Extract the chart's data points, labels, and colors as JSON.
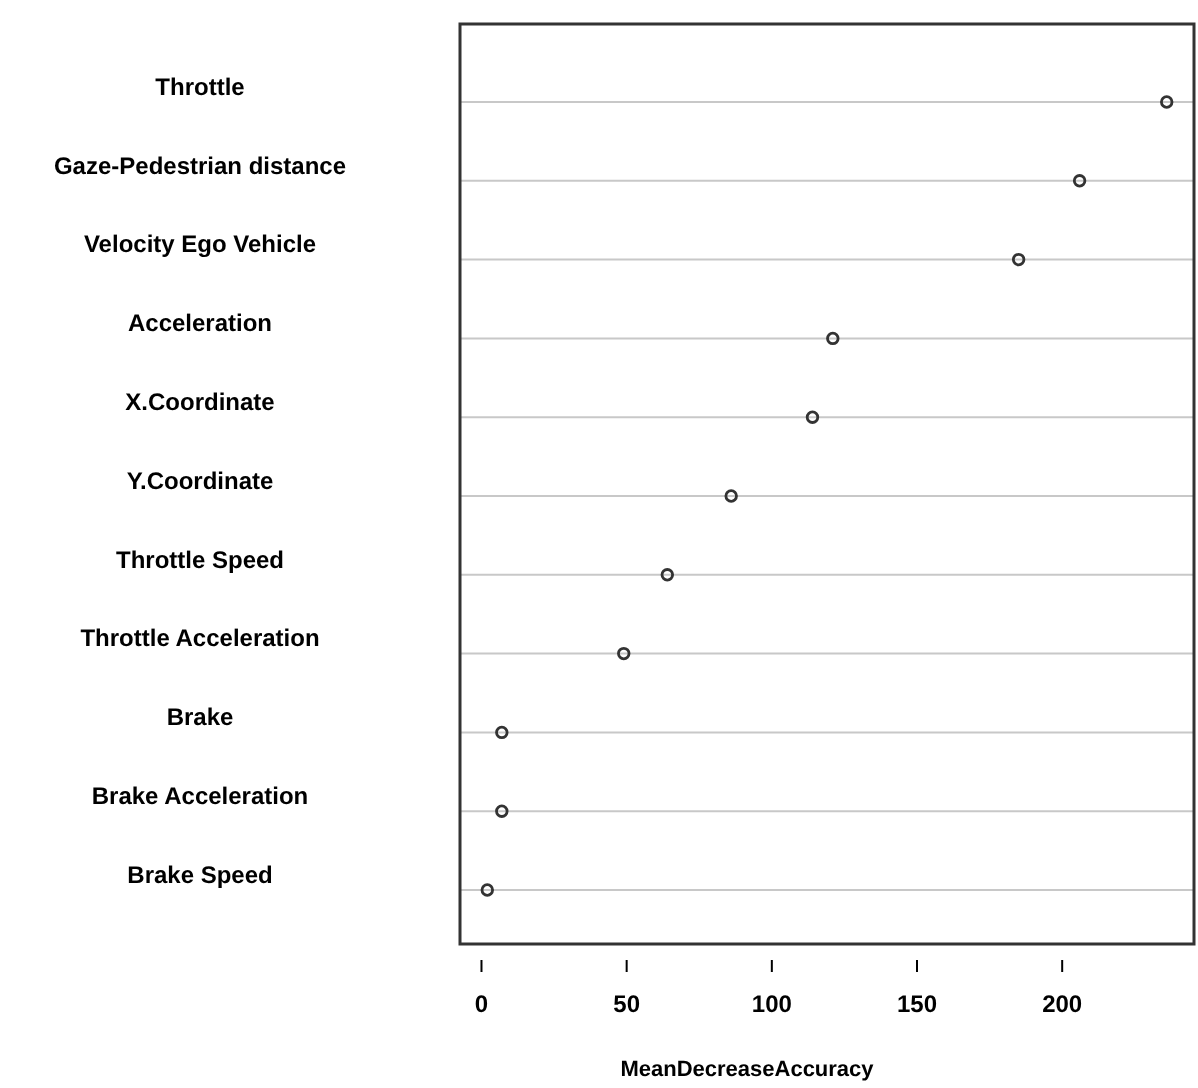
{
  "chart_data": {
    "type": "scatter",
    "xlabel": "MeanDecreaseAccuracy",
    "categories": [
      "Throttle",
      "Gaze-Pedestrian distance",
      "Velocity Ego Vehicle",
      "Acceleration",
      "X.Coordinate",
      "Y.Coordinate",
      "Throttle Speed",
      "Throttle Acceleration",
      "Brake",
      "Brake Acceleration",
      "Brake Speed"
    ],
    "orientation": "horizontal",
    "values": [
      236,
      206,
      185,
      121,
      114,
      86,
      64,
      49,
      7,
      7,
      2
    ],
    "color": "#333333",
    "xlim": [
      -7.4,
      245.4
    ],
    "xticks": [
      0,
      50,
      100,
      150,
      200
    ],
    "grid": "y",
    "marker": "circle"
  }
}
